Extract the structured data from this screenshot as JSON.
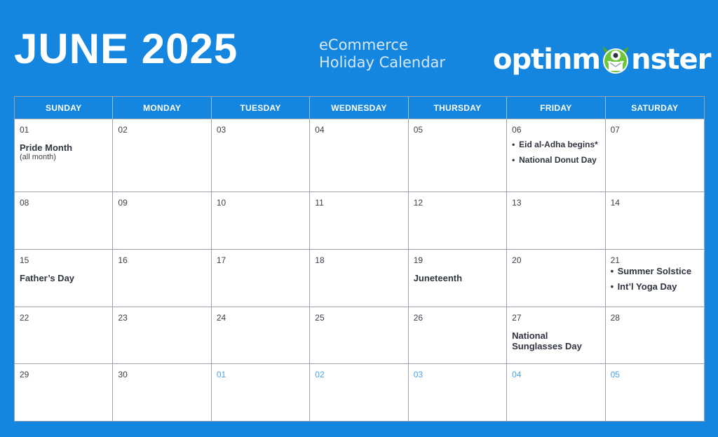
{
  "header": {
    "title": "JUNE 2025",
    "subtitle_line1": "eCommerce",
    "subtitle_line2": "Holiday Calendar",
    "logo_text_left": "optinm",
    "logo_text_right": "nster",
    "logo_icon": "green-monster-icon"
  },
  "weekdays": [
    "SUNDAY",
    "MONDAY",
    "TUESDAY",
    "WEDNESDAY",
    "THURSDAY",
    "FRIDAY",
    "SATURDAY"
  ],
  "weeks": [
    [
      {
        "num": "01",
        "event": "Pride Month",
        "note": "(all month)"
      },
      {
        "num": "02"
      },
      {
        "num": "03"
      },
      {
        "num": "04"
      },
      {
        "num": "05"
      },
      {
        "num": "06",
        "bullets": [
          "Eid al-Adha begins*",
          "National Donut Day"
        ]
      },
      {
        "num": "07"
      }
    ],
    [
      {
        "num": "08"
      },
      {
        "num": "09"
      },
      {
        "num": "10"
      },
      {
        "num": "11"
      },
      {
        "num": "12"
      },
      {
        "num": "13"
      },
      {
        "num": "14"
      }
    ],
    [
      {
        "num": "15",
        "event": "Father’s Day"
      },
      {
        "num": "16"
      },
      {
        "num": "17"
      },
      {
        "num": "18"
      },
      {
        "num": "19",
        "event": "Juneteenth"
      },
      {
        "num": "20"
      },
      {
        "num": "21",
        "bullets": [
          "Summer Solstice",
          "Int’l Yoga Day"
        ]
      }
    ],
    [
      {
        "num": "22"
      },
      {
        "num": "23"
      },
      {
        "num": "24"
      },
      {
        "num": "25"
      },
      {
        "num": "26"
      },
      {
        "num": "27",
        "event": "National Sunglasses Day"
      },
      {
        "num": "28"
      }
    ],
    [
      {
        "num": "29"
      },
      {
        "num": "30"
      },
      {
        "num": "01",
        "other_month": true
      },
      {
        "num": "02",
        "other_month": true
      },
      {
        "num": "03",
        "other_month": true
      },
      {
        "num": "04",
        "other_month": true
      },
      {
        "num": "05",
        "other_month": true
      }
    ]
  ],
  "colors": {
    "background": "#1486e0",
    "other_month_number": "#4aa3ea",
    "monster_green": "#6cc63a"
  }
}
